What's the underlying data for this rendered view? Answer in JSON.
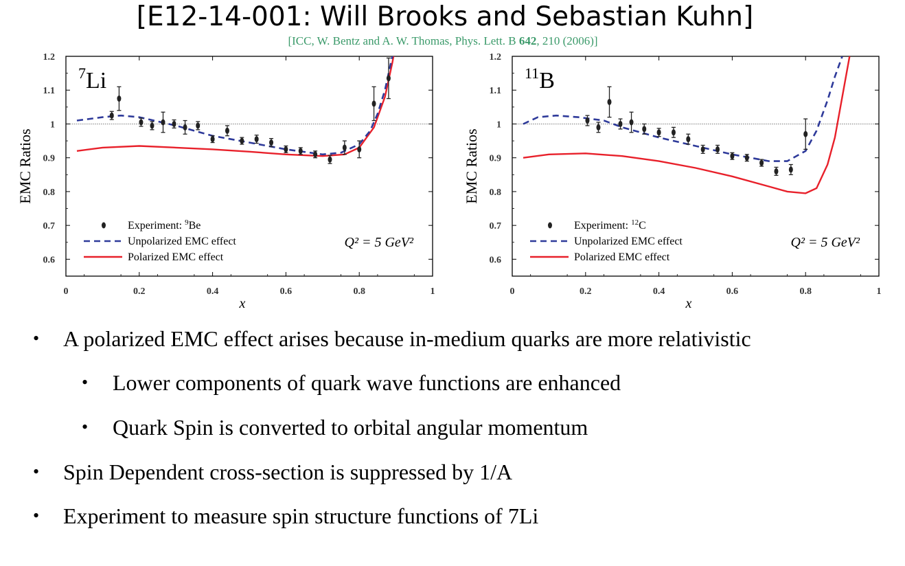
{
  "title": "[E12-14-001: Will Brooks and Sebastian Kuhn]",
  "citation": {
    "prefix": "[ICC, W. Bentz and A. W. Thomas, Phys. Lett. B ",
    "volume": "642",
    "suffix": ", 210 (2006)]"
  },
  "bullets": [
    {
      "level": 1,
      "text": "A polarized EMC effect arises because in-medium quarks are more relativistic"
    },
    {
      "level": 2,
      "text": "Lower components of quark wave functions are enhanced"
    },
    {
      "level": 2,
      "text": "Quark Spin is converted to orbital angular momentum"
    },
    {
      "level": 1,
      "text": "Spin Dependent cross-section is suppressed by 1/A"
    },
    {
      "level": 1,
      "text": "Experiment to measure spin structure functions of 7Li"
    }
  ],
  "chart_data": [
    {
      "type": "line",
      "nucleus_label": {
        "mass": "7",
        "symbol": "Li"
      },
      "xlabel": "x",
      "ylabel": "EMC Ratios",
      "xlim": [
        0,
        1
      ],
      "ylim": [
        0.55,
        1.2
      ],
      "xticks": [
        "0",
        "0.2",
        "0.4",
        "0.6",
        "0.8",
        "1"
      ],
      "yticks": [
        "0.6",
        "0.7",
        "0.8",
        "0.9",
        "1",
        "1.1",
        "1.2"
      ],
      "reference_line": 1,
      "q2_label": "Q² = 5 GeV²",
      "legend": {
        "experiment": {
          "prefix": "Experiment: ",
          "mass": "9",
          "symbol": "Be"
        },
        "unpolarized": "Unpolarized EMC effect",
        "polarized": "Polarized EMC effect"
      },
      "experiment": {
        "x": [
          0.125,
          0.145,
          0.205,
          0.235,
          0.265,
          0.295,
          0.325,
          0.36,
          0.4,
          0.44,
          0.48,
          0.52,
          0.56,
          0.6,
          0.64,
          0.68,
          0.72,
          0.76,
          0.8,
          0.84,
          0.88
        ],
        "y": [
          1.025,
          1.075,
          1.005,
          0.995,
          1.005,
          1.0,
          0.99,
          0.995,
          0.955,
          0.98,
          0.95,
          0.955,
          0.945,
          0.925,
          0.92,
          0.91,
          0.895,
          0.93,
          0.925,
          1.06,
          1.135
        ],
        "err": [
          0.012,
          0.035,
          0.012,
          0.012,
          0.03,
          0.012,
          0.02,
          0.012,
          0.01,
          0.015,
          0.01,
          0.012,
          0.012,
          0.01,
          0.01,
          0.01,
          0.012,
          0.02,
          0.025,
          0.05,
          0.06
        ]
      },
      "unpolarized": {
        "x": [
          0.03,
          0.1,
          0.15,
          0.2,
          0.3,
          0.4,
          0.5,
          0.6,
          0.7,
          0.75,
          0.8,
          0.83,
          0.85,
          0.87,
          0.89,
          0.91
        ],
        "y": [
          1.01,
          1.02,
          1.025,
          1.02,
          0.995,
          0.965,
          0.945,
          0.925,
          0.91,
          0.915,
          0.94,
          0.98,
          1.03,
          1.1,
          1.2,
          1.3
        ]
      },
      "polarized": {
        "x": [
          0.03,
          0.1,
          0.2,
          0.3,
          0.4,
          0.5,
          0.6,
          0.7,
          0.76,
          0.8,
          0.84,
          0.87,
          0.89,
          0.91
        ],
        "y": [
          0.92,
          0.93,
          0.935,
          0.93,
          0.925,
          0.918,
          0.91,
          0.905,
          0.91,
          0.93,
          0.99,
          1.08,
          1.18,
          1.3
        ]
      }
    },
    {
      "type": "line",
      "nucleus_label": {
        "mass": "11",
        "symbol": "B"
      },
      "xlabel": "x",
      "ylabel": "EMC Ratios",
      "xlim": [
        0,
        1
      ],
      "ylim": [
        0.55,
        1.2
      ],
      "xticks": [
        "0",
        "0.2",
        "0.4",
        "0.6",
        "0.8",
        "1"
      ],
      "yticks": [
        "0.6",
        "0.7",
        "0.8",
        "0.9",
        "1",
        "1.1",
        "1.2"
      ],
      "reference_line": 1,
      "q2_label": "Q² = 5 GeV²",
      "legend": {
        "experiment": {
          "prefix": "Experiment: ",
          "mass": "12",
          "symbol": "C"
        },
        "unpolarized": "Unpolarized EMC effect",
        "polarized": "Polarized EMC effect"
      },
      "experiment": {
        "x": [
          0.205,
          0.235,
          0.265,
          0.295,
          0.325,
          0.36,
          0.4,
          0.44,
          0.48,
          0.52,
          0.56,
          0.6,
          0.64,
          0.68,
          0.72,
          0.76,
          0.8
        ],
        "y": [
          1.01,
          0.99,
          1.065,
          1.0,
          1.005,
          0.985,
          0.975,
          0.975,
          0.955,
          0.925,
          0.925,
          0.905,
          0.9,
          0.885,
          0.86,
          0.865,
          0.97
        ],
        "err": [
          0.015,
          0.015,
          0.045,
          0.015,
          0.03,
          0.015,
          0.012,
          0.015,
          0.015,
          0.012,
          0.012,
          0.01,
          0.01,
          0.01,
          0.012,
          0.015,
          0.045
        ]
      },
      "unpolarized": {
        "x": [
          0.03,
          0.07,
          0.12,
          0.18,
          0.25,
          0.3,
          0.4,
          0.5,
          0.6,
          0.7,
          0.75,
          0.8,
          0.83,
          0.86,
          0.88,
          0.9
        ],
        "y": [
          1.0,
          1.02,
          1.025,
          1.02,
          1.01,
          0.99,
          0.96,
          0.935,
          0.91,
          0.89,
          0.89,
          0.92,
          0.98,
          1.07,
          1.14,
          1.2
        ]
      },
      "polarized": {
        "x": [
          0.03,
          0.1,
          0.2,
          0.3,
          0.4,
          0.5,
          0.6,
          0.7,
          0.75,
          0.8,
          0.83,
          0.86,
          0.88,
          0.9,
          0.92
        ],
        "y": [
          0.9,
          0.91,
          0.913,
          0.905,
          0.89,
          0.87,
          0.845,
          0.815,
          0.8,
          0.795,
          0.81,
          0.88,
          0.96,
          1.08,
          1.2
        ]
      }
    }
  ]
}
